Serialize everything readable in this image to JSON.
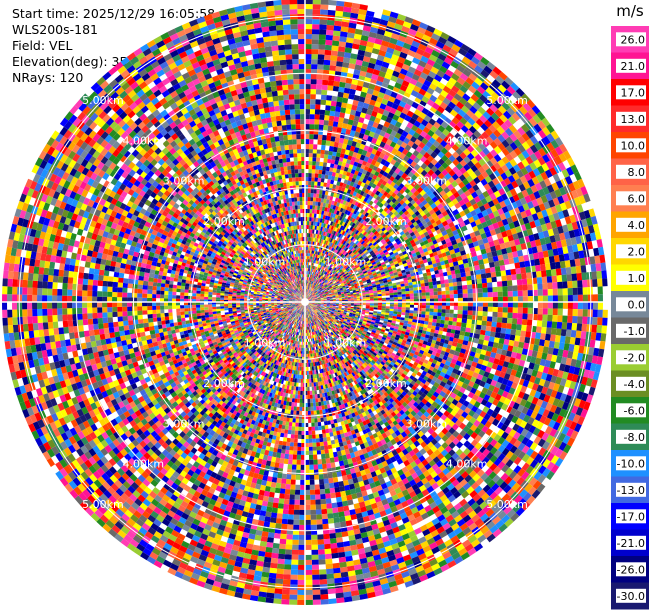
{
  "header": {
    "start_time": "Start time: 2025/12/29 16:05:58",
    "station": "WLS200s-181",
    "field": "Field: VEL",
    "elevation": "Elevation(deg): 35.00",
    "nrays": "NRays: 120"
  },
  "chart_data": {
    "type": "heatmap",
    "projection": "polar-ppi",
    "field": "VEL",
    "n_rays": 120,
    "range_rings_km": [
      1,
      2,
      3,
      4,
      5
    ],
    "ring_labels": [
      "1.00km",
      "2.00km",
      "3.00km",
      "4.00km",
      "5.00km"
    ],
    "max_range_km": 5.3,
    "colorbar": {
      "unit": "m/s",
      "ticks": [
        "26.0",
        "21.0",
        "17.0",
        "13.0",
        "10.0",
        "8.0",
        "6.0",
        "4.0",
        "2.0",
        "1.0",
        "0.0",
        "-1.0",
        "-2.0",
        "-4.0",
        "-6.0",
        "-8.0",
        "-10.0",
        "-13.0",
        "-17.0",
        "-21.0",
        "-26.0",
        "-30.0"
      ],
      "colors": [
        "#ff3cb4",
        "#ff1493",
        "#ff0000",
        "#ff2a2a",
        "#ff4500",
        "#ff6347",
        "#ff7f50",
        "#ffa500",
        "#ffd700",
        "#ffff00",
        "#778899",
        "#696969",
        "#9acd32",
        "#6b8e23",
        "#228b22",
        "#2e8b57",
        "#1e90ff",
        "#4169e1",
        "#0000ff",
        "#0000cd",
        "#000080",
        "#191970"
      ]
    }
  }
}
